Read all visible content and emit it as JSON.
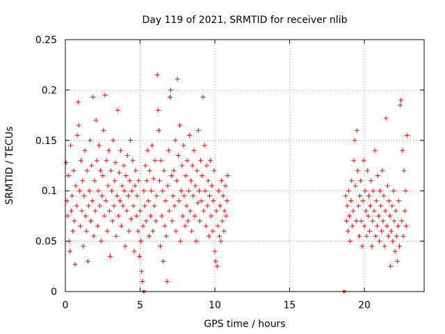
{
  "chart_data": {
    "type": "scatter",
    "title": "Day 119 of 2021, SRMTID for receiver nlib",
    "xlabel": "GPS time / hours",
    "ylabel": "SRMTID / TECUs",
    "xlim": [
      0,
      24
    ],
    "ylim": [
      0,
      0.25
    ],
    "x_ticks": [
      "0",
      "5",
      "10",
      "15",
      "20"
    ],
    "y_ticks": [
      "0",
      "0.05",
      "0.1",
      "0.15",
      "0.2",
      "0.25"
    ],
    "grid": true,
    "marker": "+",
    "color": "#ff0000",
    "series": [
      {
        "points": [
          [
            0.05,
            0.128
          ],
          [
            0.1,
            0.09
          ],
          [
            0.15,
            0.075
          ],
          [
            0.2,
            0.115
          ],
          [
            0.25,
            0.05
          ],
          [
            0.3,
            0.04
          ],
          [
            0.35,
            0.145
          ],
          [
            0.4,
            0.08
          ],
          [
            0.45,
            0.095
          ],
          [
            0.5,
            0.06
          ],
          [
            0.55,
            0.12
          ],
          [
            0.6,
            0.07
          ],
          [
            0.65,
            0.027
          ],
          [
            0.7,
            0.105
          ],
          [
            0.75,
            0.085
          ],
          [
            0.8,
            0.155
          ],
          [
            0.85,
            0.188
          ],
          [
            0.9,
            0.165
          ],
          [
            0.95,
            0.1
          ],
          [
            1.0,
            0.065
          ],
          [
            1.05,
            0.13
          ],
          [
            1.1,
            0.08
          ],
          [
            1.15,
            0.11
          ],
          [
            1.2,
            0.045
          ],
          [
            1.25,
            0.095
          ],
          [
            1.3,
            0.14
          ],
          [
            1.35,
            0.075
          ],
          [
            1.4,
            0.06
          ],
          [
            1.45,
            0.12
          ],
          [
            1.5,
            0.03
          ],
          [
            1.55,
            0.085
          ],
          [
            1.6,
            0.1
          ],
          [
            1.65,
            0.15
          ],
          [
            1.7,
            0.07
          ],
          [
            1.75,
            0.125
          ],
          [
            1.8,
            0.09
          ],
          [
            1.85,
            0.193
          ],
          [
            1.9,
            0.055
          ],
          [
            1.95,
            0.11
          ],
          [
            2.0,
            0.08
          ],
          [
            2.05,
            0.17
          ],
          [
            2.1,
            0.13
          ],
          [
            2.15,
            0.065
          ],
          [
            2.2,
            0.1
          ],
          [
            2.25,
            0.145
          ],
          [
            2.3,
            0.085
          ],
          [
            2.35,
            0.12
          ],
          [
            2.4,
            0.05
          ],
          [
            2.45,
            0.095
          ],
          [
            2.5,
            0.115
          ],
          [
            2.55,
            0.16
          ],
          [
            2.6,
            0.075
          ],
          [
            2.65,
            0.195
          ],
          [
            2.7,
            0.09
          ],
          [
            2.75,
            0.13
          ],
          [
            2.8,
            0.06
          ],
          [
            2.85,
            0.105
          ],
          [
            2.9,
            0.14
          ],
          [
            2.95,
            0.08
          ],
          [
            3.0,
            0.035
          ],
          [
            3.05,
            0.12
          ],
          [
            3.1,
            0.1
          ],
          [
            3.15,
            0.07
          ],
          [
            3.2,
            0.15
          ],
          [
            3.25,
            0.085
          ],
          [
            3.3,
            0.11
          ],
          [
            3.35,
            0.128
          ],
          [
            3.4,
            0.055
          ],
          [
            3.45,
            0.095
          ],
          [
            3.5,
            0.18
          ],
          [
            3.55,
            0.075
          ],
          [
            3.6,
            0.118
          ],
          [
            3.65,
            0.09
          ],
          [
            3.7,
            0.14
          ],
          [
            3.75,
            0.065
          ],
          [
            3.8,
            0.105
          ],
          [
            3.85,
            0.085
          ],
          [
            3.9,
            0.125
          ],
          [
            3.95,
            0.1
          ],
          [
            4.0,
            0.045
          ],
          [
            4.05,
            0.115
          ],
          [
            4.1,
            0.08
          ],
          [
            4.15,
            0.135
          ],
          [
            4.2,
            0.095
          ],
          [
            4.25,
            0.06
          ],
          [
            4.3,
            0.11
          ],
          [
            4.35,
            0.15
          ],
          [
            4.4,
            0.072
          ],
          [
            4.45,
            0.1
          ],
          [
            4.5,
            0.13
          ],
          [
            4.55,
            0.085
          ],
          [
            4.6,
            0.04
          ],
          [
            4.65,
            0.105
          ],
          [
            4.7,
            0.12
          ],
          [
            4.75,
            0.075
          ],
          [
            4.8,
            0.095
          ],
          [
            4.85,
            0.06
          ],
          [
            4.9,
            0.11
          ],
          [
            4.95,
            0.035
          ],
          [
            5.0,
            0.08
          ],
          [
            5.05,
            0.05
          ],
          [
            5.1,
            0.02
          ],
          [
            5.15,
            0.01
          ],
          [
            5.2,
            0.065
          ],
          [
            5.25,
            0.1
          ],
          [
            5.3,
            0.085
          ],
          [
            5.35,
            0.125
          ],
          [
            5.4,
            0.07
          ],
          [
            5.45,
            0.11
          ],
          [
            5.5,
            0.14
          ],
          [
            5.55,
            0.09
          ],
          [
            5.6,
            0.055
          ],
          [
            5.65,
            0.12
          ],
          [
            5.7,
            0.075
          ],
          [
            5.75,
            0.1
          ],
          [
            5.8,
            0.145
          ],
          [
            5.85,
            0.06
          ],
          [
            5.9,
            0.112
          ],
          [
            5.95,
            0.085
          ],
          [
            6.0,
            0.13
          ],
          [
            6.05,
            0.07
          ],
          [
            6.1,
            0.095
          ],
          [
            6.15,
            0.215
          ],
          [
            6.2,
            0.18
          ],
          [
            6.25,
            0.16
          ],
          [
            6.3,
            0.11
          ],
          [
            6.35,
            0.045
          ],
          [
            6.4,
            0.13
          ],
          [
            6.45,
            0.075
          ],
          [
            6.5,
            0.1
          ],
          [
            6.55,
            0.03
          ],
          [
            6.6,
            0.12
          ],
          [
            6.65,
            0.065
          ],
          [
            6.7,
            0.09
          ],
          [
            6.75,
            0.055
          ],
          [
            6.8,
            0.01
          ],
          [
            6.85,
            0.105
          ],
          [
            6.9,
            0.14
          ],
          [
            6.95,
            0.08
          ],
          [
            7.0,
            0.193
          ],
          [
            7.05,
            0.2
          ],
          [
            7.1,
            0.115
          ],
          [
            7.15,
            0.07
          ],
          [
            7.2,
            0.095
          ],
          [
            7.25,
            0.12
          ],
          [
            7.3,
            0.085
          ],
          [
            7.35,
            0.15
          ],
          [
            7.4,
            0.06
          ],
          [
            7.45,
            0.11
          ],
          [
            7.5,
            0.211
          ],
          [
            7.55,
            0.135
          ],
          [
            7.6,
            0.09
          ],
          [
            7.65,
            0.165
          ],
          [
            7.7,
            0.05
          ],
          [
            7.75,
            0.1
          ],
          [
            7.8,
            0.125
          ],
          [
            7.85,
            0.075
          ],
          [
            7.9,
            0.145
          ],
          [
            7.95,
            0.095
          ],
          [
            8.0,
            0.065
          ],
          [
            8.05,
            0.115
          ],
          [
            8.1,
            0.085
          ],
          [
            8.15,
            0.13
          ],
          [
            8.2,
            0.07
          ],
          [
            8.25,
            0.1
          ],
          [
            8.3,
            0.155
          ],
          [
            8.35,
            0.08
          ],
          [
            8.4,
            0.11
          ],
          [
            8.45,
            0.06
          ],
          [
            8.5,
            0.125
          ],
          [
            8.55,
            0.095
          ],
          [
            8.6,
            0.14
          ],
          [
            8.65,
            0.075
          ],
          [
            8.7,
            0.105
          ],
          [
            8.75,
            0.05
          ],
          [
            8.8,
            0.12
          ],
          [
            8.85,
            0.088
          ],
          [
            8.9,
            0.16
          ],
          [
            8.95,
            0.1
          ],
          [
            9.0,
            0.07
          ],
          [
            9.05,
            0.13
          ],
          [
            9.1,
            0.09
          ],
          [
            9.15,
            0.115
          ],
          [
            9.2,
            0.193
          ],
          [
            9.25,
            0.08
          ],
          [
            9.3,
            0.145
          ],
          [
            9.35,
            0.1
          ],
          [
            9.4,
            0.065
          ],
          [
            9.45,
            0.125
          ],
          [
            9.5,
            0.085
          ],
          [
            9.55,
            0.11
          ],
          [
            9.6,
            0.055
          ],
          [
            9.65,
            0.095
          ],
          [
            9.7,
            0.13
          ],
          [
            9.75,
            0.075
          ],
          [
            9.8,
            0.105
          ],
          [
            9.85,
            0.06
          ],
          [
            9.9,
            0.09
          ],
          [
            9.95,
            0.12
          ],
          [
            10.0,
            0.04
          ],
          [
            10.05,
            0.03
          ],
          [
            10.1,
            0.08
          ],
          [
            10.15,
            0.025
          ],
          [
            10.2,
            0.065
          ],
          [
            10.25,
            0.1
          ],
          [
            10.3,
            0.055
          ],
          [
            10.35,
            0.085
          ],
          [
            10.4,
            0.05
          ],
          [
            10.45,
            0.11
          ],
          [
            10.5,
            0.07
          ],
          [
            10.55,
            0.095
          ],
          [
            10.6,
            0.06
          ],
          [
            10.65,
            0.08
          ],
          [
            10.7,
            0.105
          ],
          [
            10.75,
            0.075
          ],
          [
            10.8,
            0.09
          ],
          [
            10.85,
            0.115
          ],
          [
            18.75,
            0.095
          ],
          [
            18.8,
            0.07
          ],
          [
            18.85,
            0.085
          ],
          [
            18.9,
            0.06
          ],
          [
            18.95,
            0.1
          ],
          [
            19.0,
            0.075
          ],
          [
            19.05,
            0.05
          ],
          [
            19.1,
            0.09
          ],
          [
            19.15,
            0.11
          ],
          [
            19.2,
            0.065
          ],
          [
            19.25,
            0.08
          ],
          [
            19.3,
            0.13
          ],
          [
            19.35,
            0.15
          ],
          [
            19.4,
            0.105
          ],
          [
            19.45,
            0.07
          ],
          [
            19.5,
            0.16
          ],
          [
            19.55,
            0.12
          ],
          [
            19.6,
            0.085
          ],
          [
            19.65,
            0.055
          ],
          [
            19.7,
            0.095
          ],
          [
            19.75,
            0.11
          ],
          [
            19.8,
            0.07
          ],
          [
            19.85,
            0.045
          ],
          [
            19.9,
            0.09
          ],
          [
            19.95,
            0.13
          ],
          [
            20.0,
            0.065
          ],
          [
            20.05,
            0.1
          ],
          [
            20.1,
            0.08
          ],
          [
            20.15,
            0.055
          ],
          [
            20.2,
            0.12
          ],
          [
            20.25,
            0.075
          ],
          [
            20.3,
            0.095
          ],
          [
            20.35,
            0.06
          ],
          [
            20.4,
            0.085
          ],
          [
            20.45,
            0.11
          ],
          [
            20.5,
            0.045
          ],
          [
            20.55,
            0.07
          ],
          [
            20.6,
            0.1
          ],
          [
            20.65,
            0.08
          ],
          [
            20.7,
            0.14
          ],
          [
            20.75,
            0.055
          ],
          [
            20.8,
            0.09
          ],
          [
            20.85,
            0.065
          ],
          [
            20.9,
            0.115
          ],
          [
            20.95,
            0.075
          ],
          [
            21.0,
            0.05
          ],
          [
            21.05,
            0.1
          ],
          [
            21.1,
            0.085
          ],
          [
            21.15,
            0.06
          ],
          [
            21.2,
            0.12
          ],
          [
            21.25,
            0.07
          ],
          [
            21.3,
            0.095
          ],
          [
            21.35,
            0.045
          ],
          [
            21.4,
            0.08
          ],
          [
            21.45,
            0.172
          ],
          [
            21.5,
            0.065
          ],
          [
            21.55,
            0.105
          ],
          [
            21.6,
            0.055
          ],
          [
            21.65,
            0.09
          ],
          [
            21.7,
            0.075
          ],
          [
            21.75,
            0.025
          ],
          [
            21.8,
            0.06
          ],
          [
            21.85,
            0.085
          ],
          [
            21.9,
            0.05
          ],
          [
            21.95,
            0.1
          ],
          [
            22.0,
            0.07
          ],
          [
            22.05,
            0.04
          ],
          [
            22.1,
            0.08
          ],
          [
            22.15,
            0.055
          ],
          [
            22.2,
            0.03
          ],
          [
            22.25,
            0.065
          ],
          [
            22.3,
            0.09
          ],
          [
            22.35,
            0.045
          ],
          [
            22.4,
            0.185
          ],
          [
            22.45,
            0.19
          ],
          [
            22.5,
            0.07
          ],
          [
            22.55,
            0.14
          ],
          [
            22.6,
            0.055
          ],
          [
            22.65,
            0.12
          ],
          [
            22.7,
            0.08
          ],
          [
            22.75,
            0.1
          ],
          [
            22.8,
            0.065
          ],
          [
            22.85,
            0.155
          ]
        ]
      }
    ],
    "axis_marks": [
      5.25,
      18.65
    ]
  }
}
